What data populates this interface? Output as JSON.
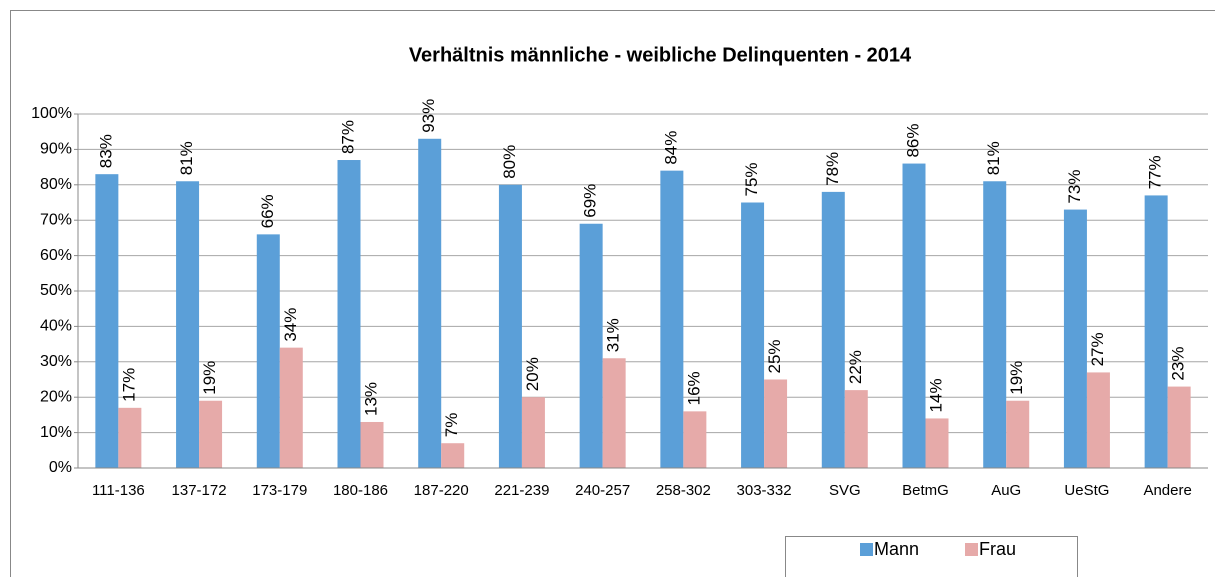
{
  "chart_data": {
    "type": "bar",
    "title": "Verhältnis männliche - weibliche Delinquenten - 2014",
    "categories": [
      "111-136",
      "137-172",
      "173-179",
      "180-186",
      "187-220",
      "221-239",
      "240-257",
      "258-302",
      "303-332",
      "SVG",
      "BetmG",
      "AuG",
      "UeStG",
      "Andere"
    ],
    "series": [
      {
        "name": "Mann",
        "color": "#5b9fd8",
        "values": [
          83,
          81,
          66,
          87,
          93,
          80,
          69,
          84,
          75,
          78,
          86,
          81,
          73,
          77
        ],
        "value_labels": [
          "83%",
          "81%",
          "66%",
          "87%",
          "93%",
          "80%",
          "69%",
          "84%",
          "75%",
          "78%",
          "86%",
          "81%",
          "73%",
          "77%"
        ]
      },
      {
        "name": "Frau",
        "color": "#e6aaa9",
        "values": [
          17,
          19,
          34,
          13,
          7,
          20,
          31,
          16,
          25,
          22,
          14,
          19,
          27,
          23
        ],
        "value_labels": [
          "17%",
          "19%",
          "34%",
          "13%",
          "7%",
          "20%",
          "31%",
          "16%",
          "25%",
          "22%",
          "14%",
          "19%",
          "27%",
          "23%"
        ]
      }
    ],
    "ylim": [
      0,
      100
    ],
    "yticks": [
      {
        "value": 0,
        "label": "0%"
      },
      {
        "value": 10,
        "label": "10%"
      },
      {
        "value": 20,
        "label": "20%"
      },
      {
        "value": 30,
        "label": "30%"
      },
      {
        "value": 40,
        "label": "40%"
      },
      {
        "value": 50,
        "label": "50%"
      },
      {
        "value": 60,
        "label": "60%"
      },
      {
        "value": 70,
        "label": "70%"
      },
      {
        "value": 80,
        "label": "80%"
      },
      {
        "value": 90,
        "label": "90%"
      },
      {
        "value": 100,
        "label": "100%"
      }
    ],
    "grid": true,
    "legend": "bottom"
  }
}
